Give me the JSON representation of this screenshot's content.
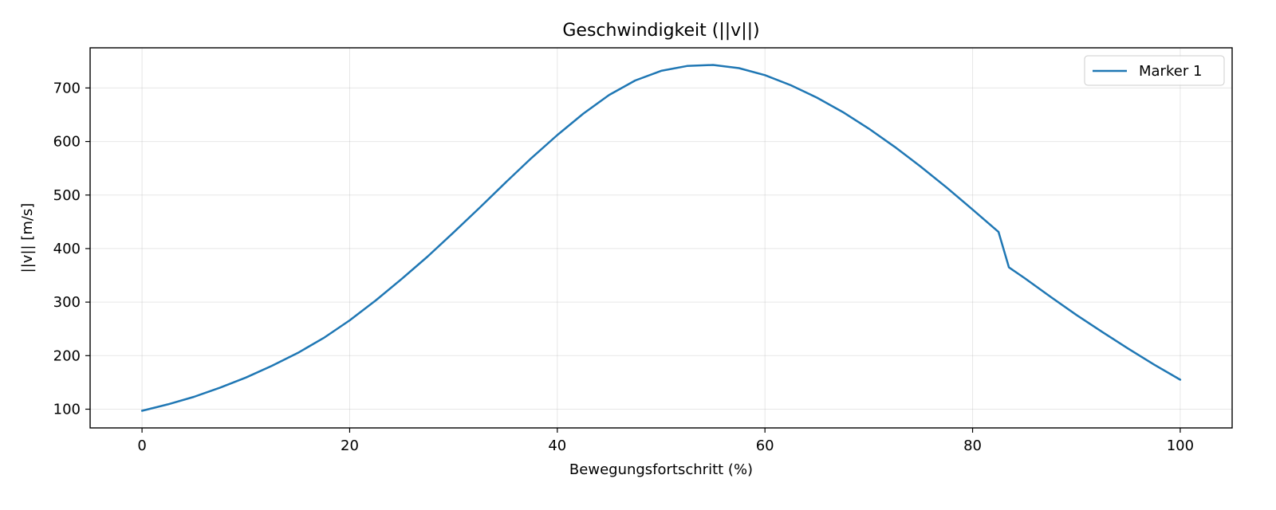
{
  "chart_data": {
    "type": "line",
    "title": "Geschwindigkeit (||v||)",
    "xlabel": "Bewegungsfortschritt (%)",
    "ylabel": "||v|| [m/s]",
    "xlim": [
      -5,
      105
    ],
    "ylim": [
      65,
      775
    ],
    "xticks": [
      0,
      20,
      40,
      60,
      80,
      100
    ],
    "yticks": [
      100,
      200,
      300,
      400,
      500,
      600,
      700
    ],
    "grid": true,
    "legend_position": "top-right",
    "series": [
      {
        "name": "Marker 1",
        "color": "#1f77b4",
        "x": [
          0,
          2.5,
          5,
          7.5,
          10,
          12.5,
          15,
          17.5,
          20,
          22.5,
          25,
          27.5,
          30,
          32.5,
          35,
          37.5,
          40,
          42.5,
          45,
          47.5,
          50,
          52.5,
          55,
          57.5,
          60,
          62.5,
          65,
          67.5,
          70,
          72.5,
          75,
          77.5,
          80,
          82.5,
          83.5,
          85,
          87.5,
          90,
          92.5,
          95,
          97.5,
          100
        ],
        "y": [
          97,
          109,
          123,
          140,
          159,
          181,
          205,
          233,
          266,
          303,
          343,
          385,
          430,
          476,
          523,
          569,
          612,
          652,
          687,
          714,
          732,
          741,
          743,
          737,
          724,
          705,
          682,
          655,
          624,
          590,
          553,
          514,
          473,
          431,
          365,
          345,
          310,
          276,
          244,
          213,
          183,
          155
        ]
      }
    ]
  }
}
